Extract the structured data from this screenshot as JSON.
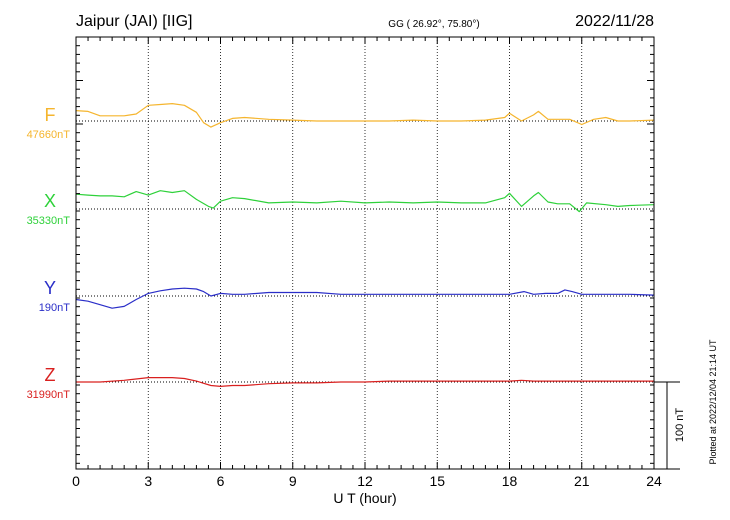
{
  "header": {
    "station": "Jaipur (JAI)  [IIG]",
    "coords": "GG ( 26.92°,  75.80°)",
    "date": "2022/11/28"
  },
  "footer": {
    "plotted": "Plotted at 2022/12/04 21:14 UT"
  },
  "chart_data": {
    "type": "line",
    "xlabel": "U T (hour)",
    "xlim": [
      0,
      24
    ],
    "xticks": [
      0,
      3,
      6,
      9,
      12,
      15,
      18,
      21,
      24
    ],
    "xtick_labels": [
      "0",
      "3",
      "6",
      "9",
      "12",
      "15",
      "18",
      "21",
      "24"
    ],
    "scale_bar": {
      "label": "100 nT",
      "value_nT": 100
    },
    "series": [
      {
        "name": "F",
        "baseline_label": "47660nT",
        "baseline_nT": 47660,
        "color": "#f5b52e",
        "points": [
          [
            0,
            47672
          ],
          [
            0.5,
            47671
          ],
          [
            1,
            47666
          ],
          [
            1.5,
            47666
          ],
          [
            2,
            47666
          ],
          [
            2.5,
            47668
          ],
          [
            3,
            47678
          ],
          [
            3.5,
            47679
          ],
          [
            4,
            47680
          ],
          [
            4.5,
            47678
          ],
          [
            5,
            47670
          ],
          [
            5.3,
            47658
          ],
          [
            5.6,
            47653
          ],
          [
            6,
            47658
          ],
          [
            6.5,
            47663
          ],
          [
            7,
            47664
          ],
          [
            8,
            47662
          ],
          [
            9,
            47661
          ],
          [
            10,
            47660
          ],
          [
            11,
            47660
          ],
          [
            12,
            47660
          ],
          [
            13,
            47660
          ],
          [
            14,
            47661
          ],
          [
            15,
            47660
          ],
          [
            16,
            47660
          ],
          [
            17,
            47661
          ],
          [
            17.8,
            47664
          ],
          [
            18,
            47669
          ],
          [
            18.5,
            47660
          ],
          [
            19,
            47667
          ],
          [
            19.2,
            47671
          ],
          [
            19.6,
            47662
          ],
          [
            20,
            47662
          ],
          [
            20.5,
            47662
          ],
          [
            21,
            47656
          ],
          [
            21.5,
            47662
          ],
          [
            22,
            47664
          ],
          [
            22.5,
            47660
          ],
          [
            23,
            47660
          ],
          [
            24,
            47661
          ]
        ]
      },
      {
        "name": "X",
        "baseline_label": "35330nT",
        "baseline_nT": 35330,
        "color": "#2ed13a",
        "points": [
          [
            0,
            35347
          ],
          [
            0.5,
            35346
          ],
          [
            1,
            35345
          ],
          [
            1.5,
            35345
          ],
          [
            2,
            35344
          ],
          [
            2.5,
            35350
          ],
          [
            3,
            35346
          ],
          [
            3.5,
            35351
          ],
          [
            4,
            35349
          ],
          [
            4.5,
            35351
          ],
          [
            5,
            35341
          ],
          [
            5.5,
            35333
          ],
          [
            5.7,
            35331
          ],
          [
            6,
            35339
          ],
          [
            6.5,
            35343
          ],
          [
            7,
            35342
          ],
          [
            8,
            35337
          ],
          [
            9,
            35338
          ],
          [
            10,
            35337
          ],
          [
            11,
            35339
          ],
          [
            12,
            35337
          ],
          [
            13,
            35338
          ],
          [
            14,
            35337
          ],
          [
            15,
            35338
          ],
          [
            16,
            35337
          ],
          [
            17,
            35337
          ],
          [
            17.8,
            35343
          ],
          [
            18,
            35348
          ],
          [
            18.5,
            35333
          ],
          [
            19,
            35345
          ],
          [
            19.2,
            35349
          ],
          [
            19.6,
            35338
          ],
          [
            20,
            35336
          ],
          [
            20.5,
            35336
          ],
          [
            20.9,
            35327
          ],
          [
            21.2,
            35337
          ],
          [
            22,
            35335
          ],
          [
            22.5,
            35333
          ],
          [
            23,
            35334
          ],
          [
            24,
            35335
          ]
        ]
      },
      {
        "name": "Y",
        "baseline_label": "190nT",
        "baseline_nT": 190,
        "color": "#2a2ec8",
        "points": [
          [
            0,
            186
          ],
          [
            0.5,
            184
          ],
          [
            1,
            180
          ],
          [
            1.5,
            176
          ],
          [
            2,
            178
          ],
          [
            2.5,
            186
          ],
          [
            3,
            193
          ],
          [
            3.5,
            196
          ],
          [
            4,
            198
          ],
          [
            4.5,
            199
          ],
          [
            5,
            198
          ],
          [
            5.3,
            195
          ],
          [
            5.6,
            190
          ],
          [
            6,
            193
          ],
          [
            6.5,
            192
          ],
          [
            7,
            192
          ],
          [
            8,
            194
          ],
          [
            9,
            194
          ],
          [
            10,
            194
          ],
          [
            11,
            192
          ],
          [
            12,
            192
          ],
          [
            13,
            192
          ],
          [
            14,
            192
          ],
          [
            15,
            192
          ],
          [
            16,
            192
          ],
          [
            17,
            192
          ],
          [
            18,
            192
          ],
          [
            18.6,
            195
          ],
          [
            19,
            192
          ],
          [
            19.5,
            193
          ],
          [
            20,
            193
          ],
          [
            20.3,
            197
          ],
          [
            20.6,
            195
          ],
          [
            21,
            192
          ],
          [
            21.5,
            192
          ],
          [
            22,
            192
          ],
          [
            22.5,
            192
          ],
          [
            23,
            192
          ],
          [
            24,
            191
          ]
        ]
      },
      {
        "name": "Z",
        "baseline_label": "31990nT",
        "baseline_nT": 31990,
        "color": "#d9201f",
        "points": [
          [
            0,
            31990
          ],
          [
            1,
            31990
          ],
          [
            2,
            31992
          ],
          [
            3,
            31995
          ],
          [
            4,
            31995
          ],
          [
            4.5,
            31994
          ],
          [
            5,
            31991
          ],
          [
            5.6,
            31986
          ],
          [
            6,
            31985
          ],
          [
            6.5,
            31986
          ],
          [
            7,
            31986
          ],
          [
            8,
            31988
          ],
          [
            9,
            31989
          ],
          [
            10,
            31989
          ],
          [
            11,
            31990
          ],
          [
            12,
            31990
          ],
          [
            13,
            31991
          ],
          [
            14,
            31991
          ],
          [
            15,
            31991
          ],
          [
            16,
            31991
          ],
          [
            17,
            31991
          ],
          [
            18,
            31991
          ],
          [
            18.5,
            31992
          ],
          [
            19,
            31991
          ],
          [
            20,
            31991
          ],
          [
            21,
            31991
          ],
          [
            22,
            31991
          ],
          [
            23,
            31991
          ],
          [
            24,
            31991
          ]
        ]
      }
    ]
  }
}
